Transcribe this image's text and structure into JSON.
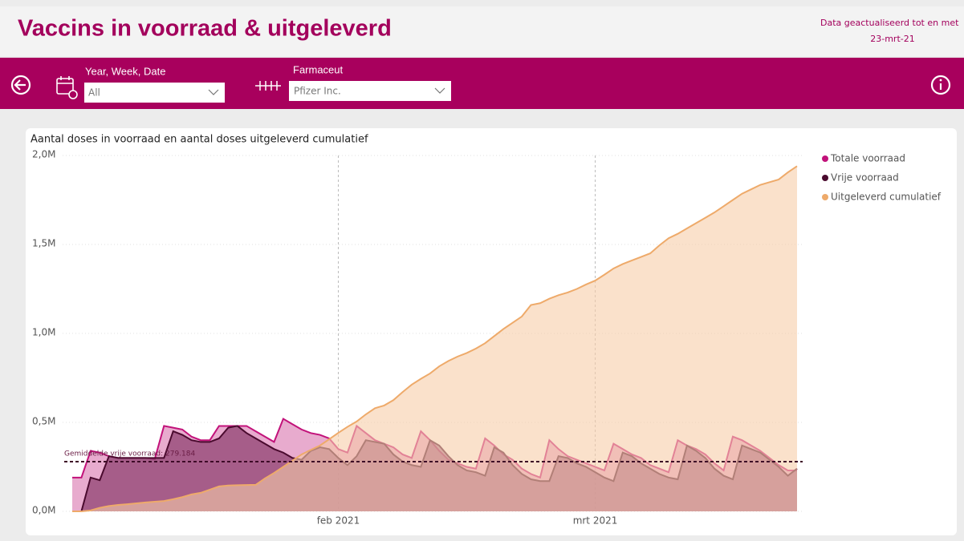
{
  "header": {
    "title": "Vaccins in voorraad & uitgeleverd",
    "update_label": "Data geactualiseerd tot en met",
    "update_date": "23-mrt-21"
  },
  "filters": [
    {
      "label": "Year, Week, Date",
      "value": "All"
    },
    {
      "label": "Farmaceut",
      "value": "Pfizer Inc."
    }
  ],
  "chart_data": {
    "type": "area",
    "title": "Aantal doses in voorraad en aantal doses uitgeleverd cumulatief",
    "categories": [
      null,
      null,
      null,
      null,
      null,
      null,
      null,
      null,
      null,
      null,
      null,
      null,
      null,
      null,
      null,
      null,
      null,
      null,
      null,
      null,
      null,
      null,
      null,
      null,
      null,
      null,
      null,
      null,
      null,
      "feb 2021",
      null,
      null,
      null,
      null,
      null,
      null,
      null,
      null,
      null,
      null,
      null,
      null,
      null,
      null,
      null,
      null,
      null,
      null,
      null,
      null,
      null,
      null,
      null,
      null,
      null,
      null,
      null,
      "mrt 2021",
      null,
      null,
      null,
      null,
      null,
      null,
      null,
      null,
      null,
      null,
      null,
      null,
      null,
      null,
      null,
      null,
      null,
      null,
      null,
      null,
      null,
      null
    ],
    "ylim": [
      0,
      2000000
    ],
    "yticks": [
      {
        "value": 0,
        "label": "0,0M"
      },
      {
        "value": 500000,
        "label": "0,5M"
      },
      {
        "value": 1000000,
        "label": "1,0M"
      },
      {
        "value": 1500000,
        "label": "1,5M"
      },
      {
        "value": 2000000,
        "label": "2,0M"
      }
    ],
    "grid": true,
    "legend": "right",
    "reference_line": {
      "label": "Gemiddelde vrije voorraad: 279.184",
      "value": 279184,
      "color": "#3d0a26"
    },
    "series": [
      {
        "name": "Totale voorraad",
        "color": "#c2127a",
        "fill": "#d873ad",
        "values": [
          190000,
          190000,
          340000,
          330000,
          310000,
          300000,
          300000,
          300000,
          300000,
          295000,
          480000,
          470000,
          460000,
          420000,
          400000,
          400000,
          480000,
          480000,
          480000,
          480000,
          450000,
          420000,
          390000,
          520000,
          490000,
          460000,
          440000,
          430000,
          410000,
          350000,
          330000,
          480000,
          440000,
          400000,
          380000,
          360000,
          320000,
          300000,
          450000,
          400000,
          340000,
          290000,
          270000,
          250000,
          240000,
          410000,
          370000,
          320000,
          290000,
          240000,
          210000,
          190000,
          400000,
          350000,
          310000,
          290000,
          270000,
          250000,
          230000,
          380000,
          350000,
          320000,
          300000,
          260000,
          240000,
          220000,
          400000,
          370000,
          350000,
          320000,
          270000,
          230000,
          420000,
          400000,
          370000,
          340000,
          300000,
          260000,
          230000,
          230000
        ]
      },
      {
        "name": "Vrije voorraad",
        "color": "#4a0a2e",
        "fill": "#7a2a5c",
        "values": [
          0,
          0,
          190000,
          175000,
          310000,
          300000,
          300000,
          300000,
          300000,
          300000,
          300000,
          450000,
          430000,
          400000,
          390000,
          390000,
          410000,
          470000,
          480000,
          440000,
          410000,
          380000,
          350000,
          330000,
          300000,
          290000,
          340000,
          360000,
          350000,
          300000,
          260000,
          310000,
          400000,
          390000,
          380000,
          320000,
          280000,
          260000,
          250000,
          400000,
          370000,
          310000,
          260000,
          230000,
          220000,
          200000,
          360000,
          330000,
          260000,
          210000,
          180000,
          170000,
          170000,
          310000,
          300000,
          270000,
          250000,
          220000,
          190000,
          170000,
          330000,
          310000,
          270000,
          240000,
          210000,
          190000,
          180000,
          370000,
          340000,
          300000,
          240000,
          200000,
          180000,
          370000,
          350000,
          330000,
          290000,
          250000,
          200000,
          240000
        ]
      },
      {
        "name": "Uitgeleverd cumulatief",
        "color": "#eeaa6a",
        "fill": "#f6cda8",
        "values": [
          0,
          0,
          5000,
          20000,
          30000,
          36000,
          40000,
          45000,
          50000,
          54000,
          58000,
          68000,
          80000,
          95000,
          104000,
          122000,
          140000,
          145000,
          147000,
          148000,
          149000,
          185000,
          216000,
          250000,
          285000,
          320000,
          345000,
          370000,
          405000,
          441000,
          475000,
          505000,
          545000,
          580000,
          595000,
          625000,
          670000,
          712000,
          745000,
          775000,
          815000,
          845000,
          870000,
          890000,
          915000,
          945000,
          985000,
          1025000,
          1060000,
          1095000,
          1160000,
          1170000,
          1195000,
          1215000,
          1230000,
          1250000,
          1275000,
          1297000,
          1330000,
          1365000,
          1390000,
          1410000,
          1430000,
          1450000,
          1495000,
          1535000,
          1560000,
          1590000,
          1620000,
          1650000,
          1680000,
          1715000,
          1750000,
          1785000,
          1810000,
          1835000,
          1850000,
          1865000,
          1905000,
          1940000
        ]
      }
    ]
  }
}
